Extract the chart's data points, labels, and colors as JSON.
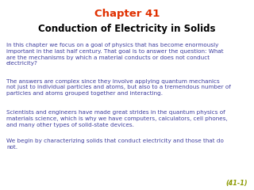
{
  "title_line1": "Chapter 41",
  "title_line2": "Conduction of Electricity in Solids",
  "title_color": "#E03000",
  "subtitle_color": "#000000",
  "body_color": "#4040A0",
  "page_num": "(41-1)",
  "page_num_color": "#8B9900",
  "background_color": "#FFFFFF",
  "paragraphs": [
    "In this chapter we focus on a goal of physics that has become enormously\nimportant in the last half century. That goal is to answer the question: What\nare the mechanisms by which a material conducts or does not conduct\nelectricity?",
    "The answers are complex since they involve applying quantum mechanics\nnot just to individual particles and atoms, but also to a tremendous number of\nparticles and atoms grouped together and interacting.",
    "Scientists and engineers have made great strides in the quantum physics of\nmaterials science, which is why we have computers, calculators, cell phones,\nand many other types of solid-state devices.",
    "We begin by characterizing solids that conduct electricity and those that do\nnot."
  ],
  "title1_fontsize": 9.5,
  "title2_fontsize": 8.5,
  "body_fontsize": 5.2,
  "pagenum_fontsize": 5.8
}
